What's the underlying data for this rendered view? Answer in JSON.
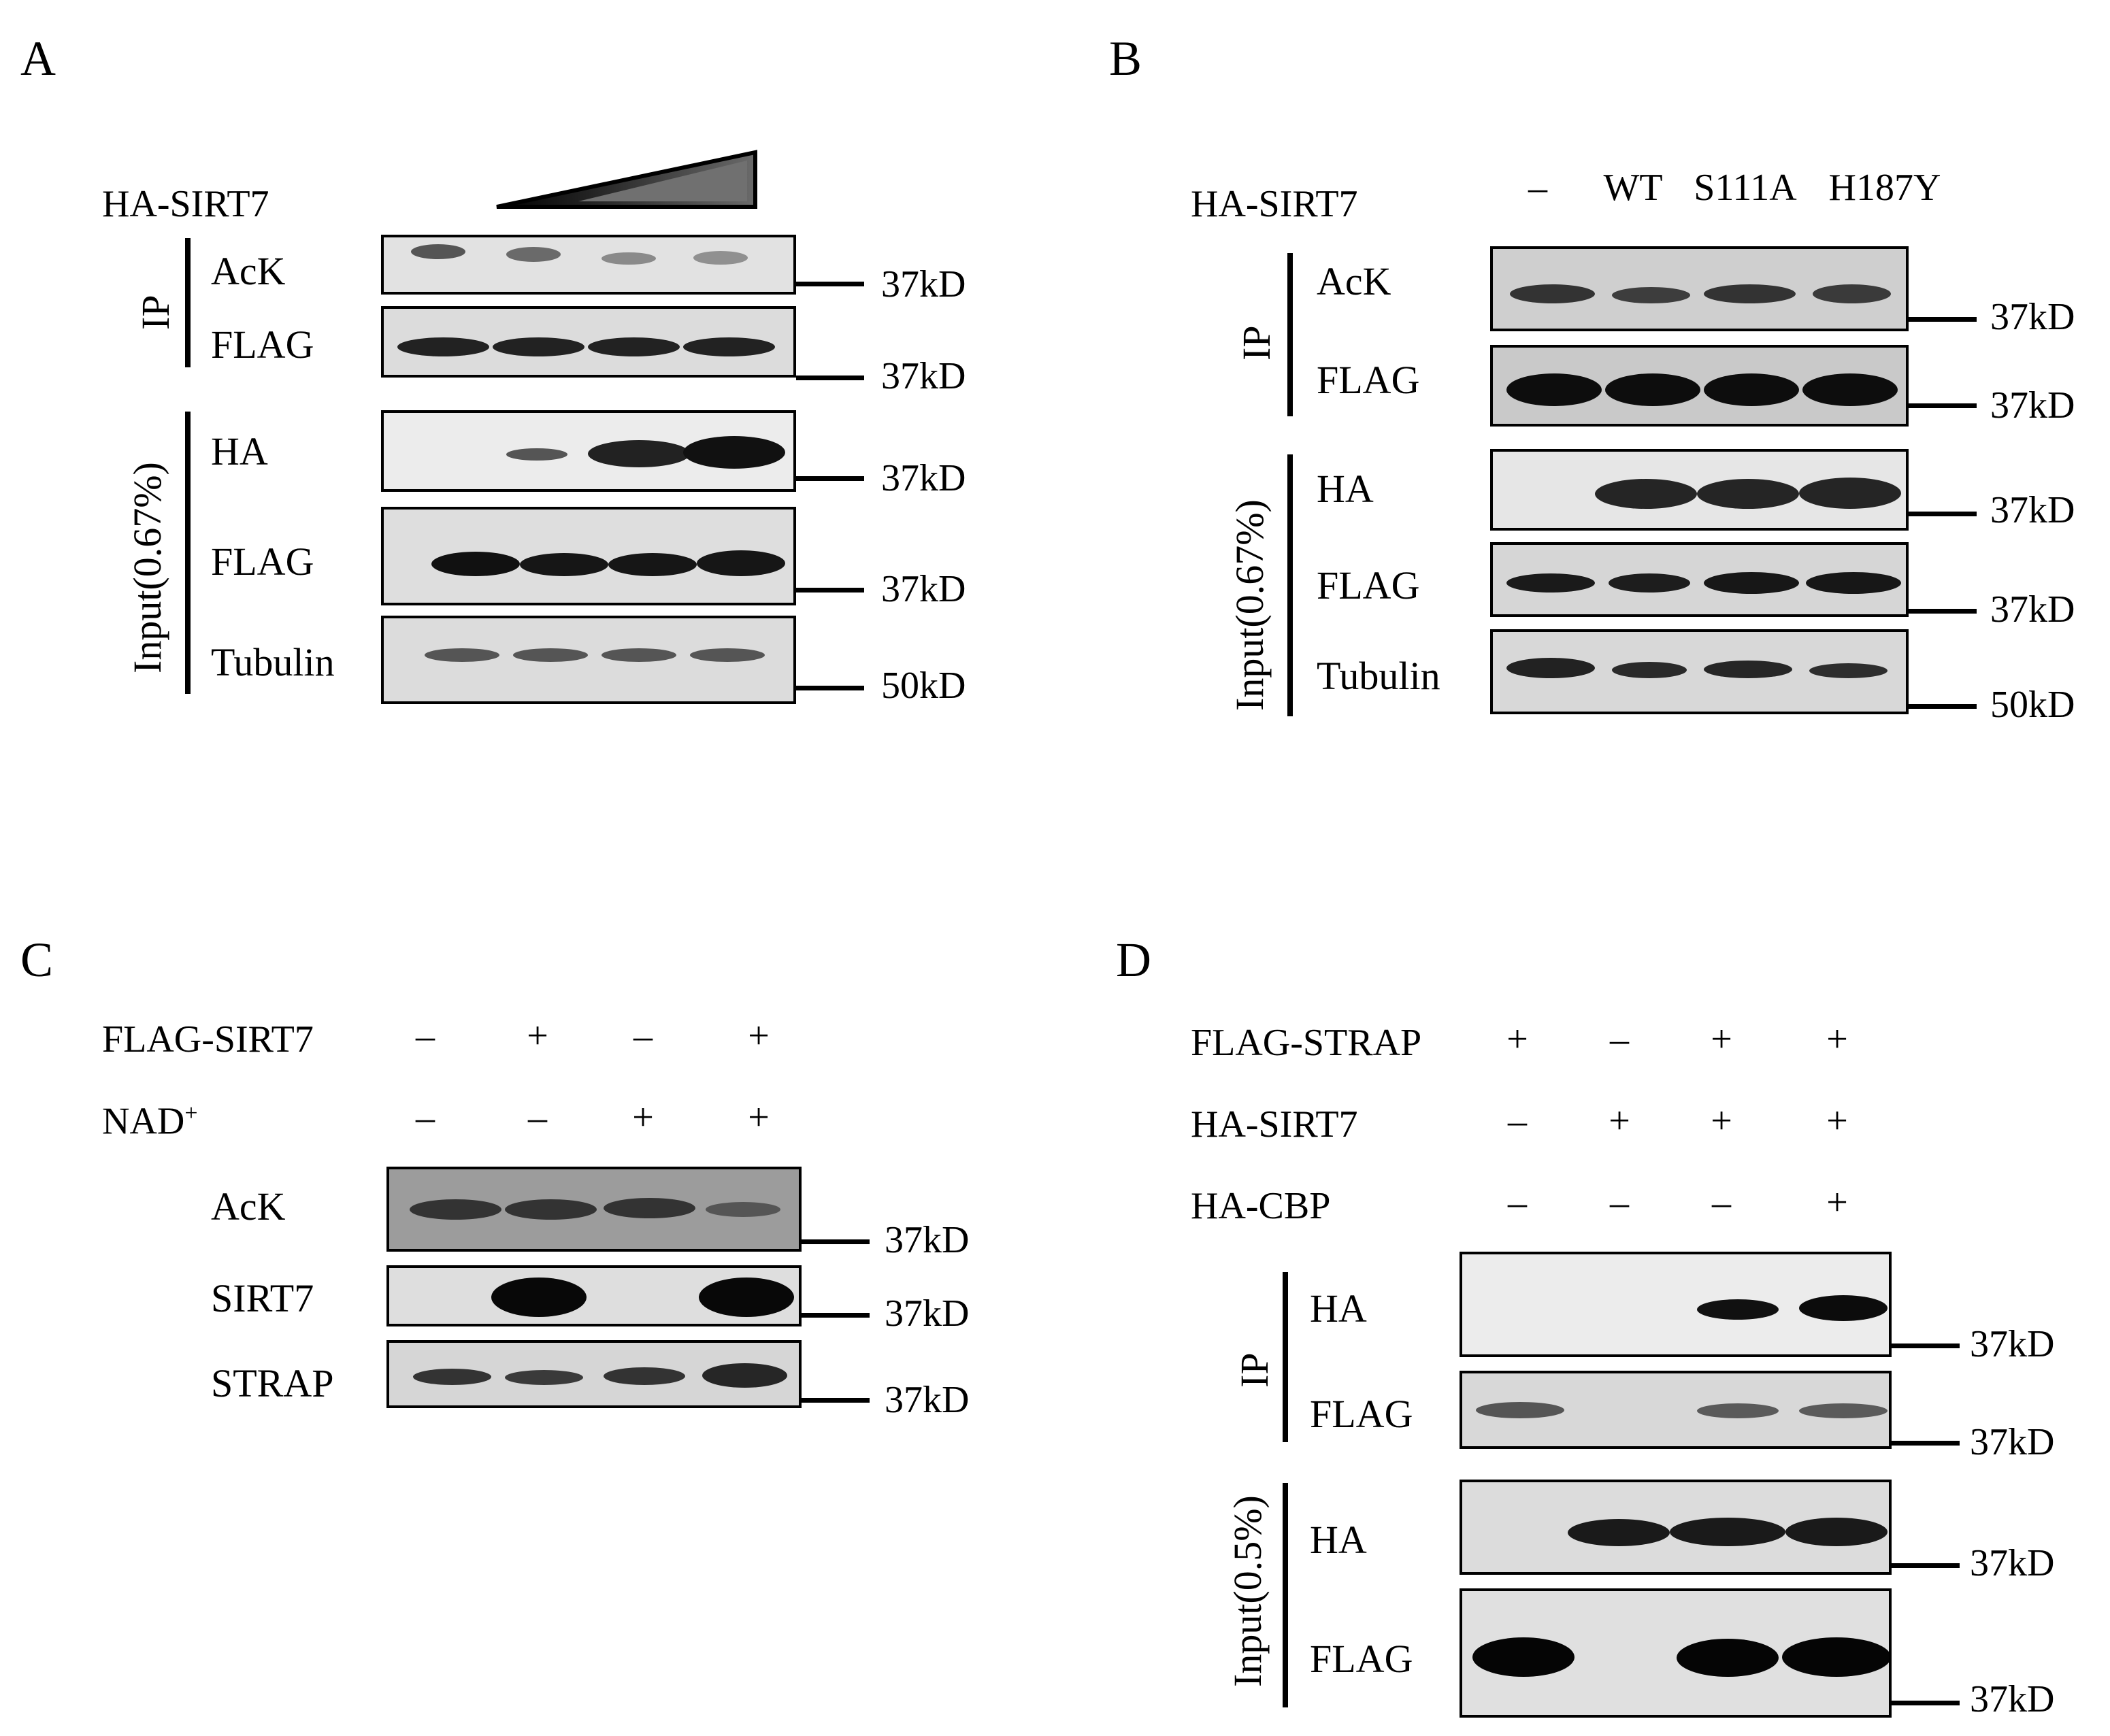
{
  "panels": {
    "A": {
      "label": "A",
      "treatment": "HA-SIRT7",
      "groups": {
        "ip": "IP",
        "input": "Input(0.67%)"
      },
      "rows": [
        "AcK",
        "FLAG",
        "HA",
        "FLAG",
        "Tubulin"
      ],
      "mw": [
        "37kD",
        "37kD",
        "37kD",
        "37kD",
        "50kD"
      ]
    },
    "B": {
      "label": "B",
      "treatment": "HA-SIRT7",
      "lanes": [
        "–",
        "WT",
        "S111A",
        "H187Y"
      ],
      "groups": {
        "ip": "IP",
        "input": "Input(0.67%)"
      },
      "rows": [
        "AcK",
        "FLAG",
        "HA",
        "FLAG",
        "Tubulin"
      ],
      "mw": [
        "37kD",
        "37kD",
        "37kD",
        "37kD",
        "50kD"
      ]
    },
    "C": {
      "label": "C",
      "conditions": [
        {
          "name": "FLAG-SIRT7",
          "signs": [
            "–",
            "+",
            "–",
            "+"
          ]
        },
        {
          "name": "NAD",
          "sup": "+",
          "signs": [
            "–",
            "–",
            "+",
            "+"
          ]
        }
      ],
      "rows": [
        "AcK",
        "SIRT7",
        "STRAP"
      ],
      "mw": [
        "37kD",
        "37kD",
        "37kD"
      ]
    },
    "D": {
      "label": "D",
      "conditions": [
        {
          "name": "FLAG-STRAP",
          "signs": [
            "+",
            "–",
            "+",
            "+"
          ]
        },
        {
          "name": "HA-SIRT7",
          "signs": [
            "–",
            "+",
            "+",
            "+"
          ]
        },
        {
          "name": "HA-CBP",
          "signs": [
            "–",
            "–",
            "–",
            "+"
          ]
        }
      ],
      "groups": {
        "ip": "IP",
        "input": "Input(0.5%)"
      },
      "rows": [
        "HA",
        "FLAG",
        "HA",
        "FLAG"
      ],
      "mw": [
        "37kD",
        "37kD",
        "37kD",
        "37kD"
      ]
    }
  },
  "colors": {
    "band": "#111111",
    "blot_bg_light": "#e6e6e6",
    "blot_bg_mid": "#cfcfcf"
  }
}
